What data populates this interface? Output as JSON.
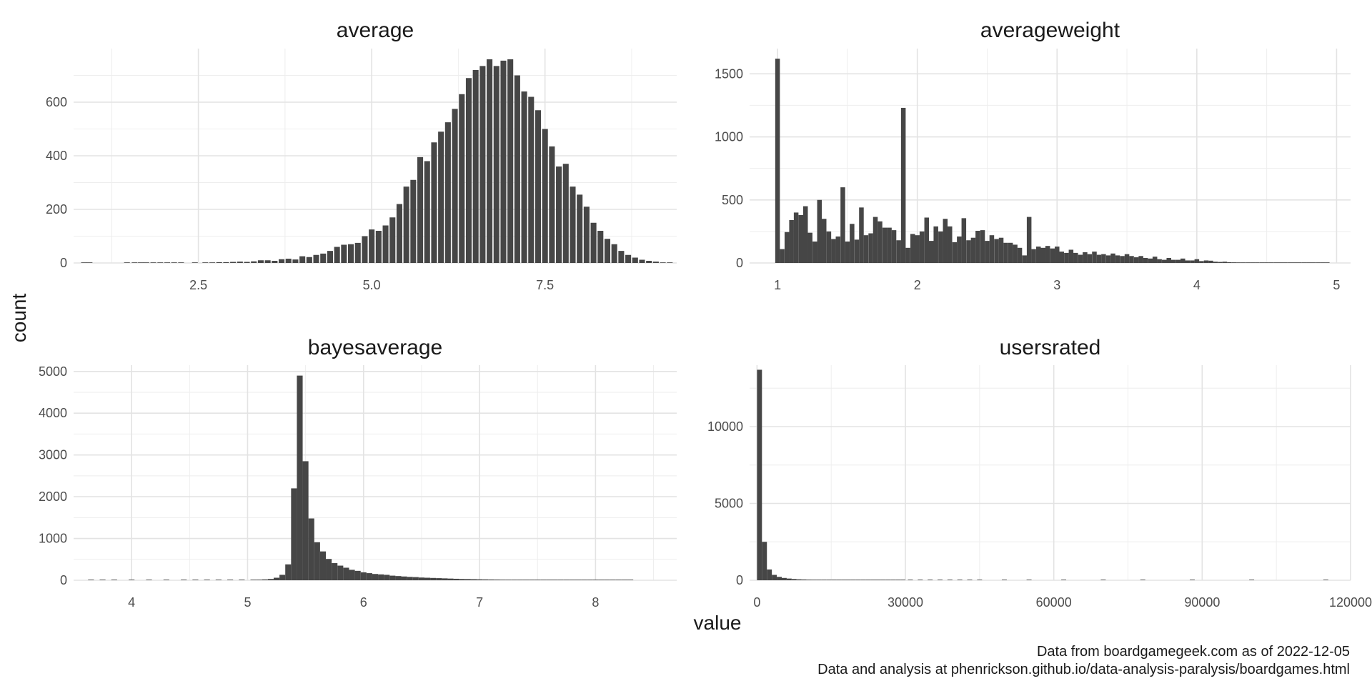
{
  "figure": {
    "y_axis_title": "count",
    "x_axis_title": "value",
    "caption_lines": [
      "Data from boardgamegeek.com as of 2022-12-05",
      "Data and analysis at phenrickson.github.io/data-analysis-paralysis/boardgames.html"
    ],
    "bar_color": "#464646"
  },
  "chart_data": [
    {
      "type": "bar",
      "title": "average",
      "xlim": [
        0.7,
        9.4
      ],
      "ylim": [
        0,
        800
      ],
      "x_ticks": [
        2.5,
        5.0,
        7.5
      ],
      "x_tick_labels": [
        "2.5",
        "5.0",
        "7.5"
      ],
      "y_ticks": [
        0,
        200,
        400,
        600
      ],
      "y_tick_labels": [
        "0",
        "200",
        "400",
        "600"
      ],
      "bin_width": 0.0833,
      "bins": [
        [
          0.85,
          1
        ],
        [
          0.93,
          1
        ],
        [
          1.47,
          1
        ],
        [
          1.58,
          1
        ],
        [
          1.67,
          1
        ],
        [
          1.75,
          1
        ],
        [
          1.85,
          1
        ],
        [
          1.95,
          2
        ],
        [
          2.05,
          2
        ],
        [
          2.15,
          2
        ],
        [
          2.25,
          1
        ],
        [
          2.45,
          1
        ],
        [
          2.6,
          2
        ],
        [
          2.7,
          2
        ],
        [
          2.8,
          3
        ],
        [
          2.9,
          3
        ],
        [
          3.0,
          4
        ],
        [
          3.1,
          5
        ],
        [
          3.2,
          4
        ],
        [
          3.3,
          6
        ],
        [
          3.4,
          10
        ],
        [
          3.5,
          10
        ],
        [
          3.6,
          8
        ],
        [
          3.7,
          14
        ],
        [
          3.8,
          16
        ],
        [
          3.9,
          13
        ],
        [
          4.0,
          25
        ],
        [
          4.1,
          22
        ],
        [
          4.2,
          30
        ],
        [
          4.3,
          35
        ],
        [
          4.4,
          45
        ],
        [
          4.5,
          60
        ],
        [
          4.6,
          68
        ],
        [
          4.7,
          70
        ],
        [
          4.8,
          75
        ],
        [
          4.9,
          100
        ],
        [
          5.0,
          125
        ],
        [
          5.1,
          120
        ],
        [
          5.2,
          140
        ],
        [
          5.3,
          170
        ],
        [
          5.4,
          220
        ],
        [
          5.5,
          285
        ],
        [
          5.6,
          310
        ],
        [
          5.7,
          395
        ],
        [
          5.8,
          380
        ],
        [
          5.9,
          450
        ],
        [
          6.0,
          490
        ],
        [
          6.1,
          525
        ],
        [
          6.2,
          575
        ],
        [
          6.3,
          630
        ],
        [
          6.4,
          690
        ],
        [
          6.5,
          720
        ],
        [
          6.6,
          735
        ],
        [
          6.7,
          760
        ],
        [
          6.8,
          735
        ],
        [
          6.9,
          755
        ],
        [
          7.0,
          760
        ],
        [
          7.1,
          700
        ],
        [
          7.2,
          640
        ],
        [
          7.3,
          620
        ],
        [
          7.4,
          570
        ],
        [
          7.5,
          500
        ],
        [
          7.6,
          435
        ],
        [
          7.7,
          360
        ],
        [
          7.8,
          370
        ],
        [
          7.9,
          285
        ],
        [
          8.0,
          255
        ],
        [
          8.1,
          210
        ],
        [
          8.2,
          150
        ],
        [
          8.3,
          120
        ],
        [
          8.4,
          90
        ],
        [
          8.5,
          70
        ],
        [
          8.6,
          45
        ],
        [
          8.7,
          30
        ],
        [
          8.8,
          20
        ],
        [
          8.9,
          12
        ],
        [
          9.0,
          8
        ],
        [
          9.1,
          5
        ],
        [
          9.2,
          2
        ],
        [
          9.3,
          1
        ]
      ]
    },
    {
      "type": "bar",
      "title": "averageweight",
      "xlim": [
        0.8,
        5.1
      ],
      "ylim": [
        0,
        1700
      ],
      "x_ticks": [
        1,
        2,
        3,
        4,
        5
      ],
      "x_tick_labels": [
        "1",
        "2",
        "3",
        "4",
        "5"
      ],
      "y_ticks": [
        0,
        500,
        1000,
        1500
      ],
      "y_tick_labels": [
        "0",
        "500",
        "1000",
        "1500"
      ],
      "bin_width": 0.0333,
      "bins": [
        [
          1.0,
          1620
        ],
        [
          1.033,
          110
        ],
        [
          1.067,
          245
        ],
        [
          1.1,
          340
        ],
        [
          1.133,
          400
        ],
        [
          1.167,
          380
        ],
        [
          1.2,
          450
        ],
        [
          1.233,
          240
        ],
        [
          1.267,
          170
        ],
        [
          1.3,
          500
        ],
        [
          1.333,
          350
        ],
        [
          1.367,
          250
        ],
        [
          1.4,
          190
        ],
        [
          1.433,
          210
        ],
        [
          1.467,
          600
        ],
        [
          1.5,
          170
        ],
        [
          1.533,
          310
        ],
        [
          1.567,
          185
        ],
        [
          1.6,
          440
        ],
        [
          1.633,
          220
        ],
        [
          1.667,
          235
        ],
        [
          1.7,
          365
        ],
        [
          1.733,
          330
        ],
        [
          1.767,
          280
        ],
        [
          1.8,
          280
        ],
        [
          1.833,
          260
        ],
        [
          1.867,
          180
        ],
        [
          1.9,
          1230
        ],
        [
          1.933,
          120
        ],
        [
          1.967,
          230
        ],
        [
          2.0,
          220
        ],
        [
          2.033,
          250
        ],
        [
          2.067,
          360
        ],
        [
          2.1,
          175
        ],
        [
          2.133,
          290
        ],
        [
          2.167,
          250
        ],
        [
          2.2,
          350
        ],
        [
          2.233,
          290
        ],
        [
          2.267,
          165
        ],
        [
          2.3,
          210
        ],
        [
          2.333,
          355
        ],
        [
          2.367,
          180
        ],
        [
          2.4,
          200
        ],
        [
          2.433,
          255
        ],
        [
          2.467,
          260
        ],
        [
          2.5,
          175
        ],
        [
          2.533,
          220
        ],
        [
          2.567,
          190
        ],
        [
          2.6,
          200
        ],
        [
          2.633,
          160
        ],
        [
          2.667,
          160
        ],
        [
          2.7,
          145
        ],
        [
          2.733,
          120
        ],
        [
          2.767,
          60
        ],
        [
          2.8,
          365
        ],
        [
          2.833,
          110
        ],
        [
          2.867,
          130
        ],
        [
          2.9,
          120
        ],
        [
          2.933,
          135
        ],
        [
          2.967,
          115
        ],
        [
          3.0,
          130
        ],
        [
          3.033,
          90
        ],
        [
          3.067,
          80
        ],
        [
          3.1,
          105
        ],
        [
          3.133,
          80
        ],
        [
          3.167,
          65
        ],
        [
          3.2,
          85
        ],
        [
          3.233,
          70
        ],
        [
          3.267,
          90
        ],
        [
          3.3,
          65
        ],
        [
          3.333,
          70
        ],
        [
          3.367,
          60
        ],
        [
          3.4,
          75
        ],
        [
          3.433,
          60
        ],
        [
          3.467,
          55
        ],
        [
          3.5,
          70
        ],
        [
          3.533,
          55
        ],
        [
          3.567,
          45
        ],
        [
          3.6,
          55
        ],
        [
          3.633,
          40
        ],
        [
          3.667,
          35
        ],
        [
          3.7,
          50
        ],
        [
          3.733,
          30
        ],
        [
          3.767,
          25
        ],
        [
          3.8,
          40
        ],
        [
          3.833,
          25
        ],
        [
          3.867,
          25
        ],
        [
          3.9,
          35
        ],
        [
          3.933,
          20
        ],
        [
          3.967,
          20
        ],
        [
          4.0,
          30
        ],
        [
          4.033,
          15
        ],
        [
          4.067,
          20
        ],
        [
          4.1,
          18
        ],
        [
          4.133,
          10
        ],
        [
          4.167,
          8
        ],
        [
          4.2,
          10
        ],
        [
          4.233,
          6
        ],
        [
          4.267,
          5
        ],
        [
          4.3,
          4
        ],
        [
          4.333,
          3
        ],
        [
          4.367,
          2
        ],
        [
          4.4,
          2
        ],
        [
          4.433,
          1
        ],
        [
          4.467,
          1
        ],
        [
          4.5,
          1
        ],
        [
          4.533,
          1
        ],
        [
          4.567,
          1
        ],
        [
          4.6,
          1
        ],
        [
          4.633,
          1
        ],
        [
          4.667,
          1
        ],
        [
          4.7,
          1
        ],
        [
          4.733,
          1
        ],
        [
          4.767,
          1
        ],
        [
          4.8,
          1
        ],
        [
          4.833,
          1
        ],
        [
          4.867,
          1
        ],
        [
          4.9,
          1
        ],
        [
          4.933,
          1
        ]
      ]
    },
    {
      "type": "bar",
      "title": "bayesaverage",
      "xlim": [
        3.5,
        8.7
      ],
      "ylim": [
        0,
        5150
      ],
      "x_ticks": [
        4,
        5,
        6,
        7,
        8
      ],
      "x_tick_labels": [
        "4",
        "5",
        "6",
        "7",
        "8"
      ],
      "y_ticks": [
        0,
        1000,
        2000,
        3000,
        4000,
        5000
      ],
      "y_tick_labels": [
        "0",
        "1000",
        "2000",
        "3000",
        "4000",
        "5000"
      ],
      "bin_width": 0.05,
      "bins": [
        [
          3.65,
          2
        ],
        [
          3.75,
          2
        ],
        [
          3.85,
          2
        ],
        [
          4.0,
          2
        ],
        [
          4.15,
          2
        ],
        [
          4.3,
          2
        ],
        [
          4.45,
          3
        ],
        [
          4.55,
          3
        ],
        [
          4.65,
          4
        ],
        [
          4.75,
          4
        ],
        [
          4.85,
          6
        ],
        [
          4.95,
          8
        ],
        [
          5.05,
          12
        ],
        [
          5.1,
          14
        ],
        [
          5.15,
          20
        ],
        [
          5.2,
          30
        ],
        [
          5.25,
          60
        ],
        [
          5.3,
          130
        ],
        [
          5.35,
          380
        ],
        [
          5.4,
          2200
        ],
        [
          5.45,
          4900
        ],
        [
          5.5,
          2850
        ],
        [
          5.55,
          1480
        ],
        [
          5.6,
          910
        ],
        [
          5.65,
          690
        ],
        [
          5.7,
          510
        ],
        [
          5.75,
          410
        ],
        [
          5.8,
          350
        ],
        [
          5.85,
          300
        ],
        [
          5.9,
          250
        ],
        [
          5.95,
          225
        ],
        [
          6.0,
          190
        ],
        [
          6.05,
          170
        ],
        [
          6.1,
          150
        ],
        [
          6.15,
          140
        ],
        [
          6.2,
          130
        ],
        [
          6.25,
          110
        ],
        [
          6.3,
          100
        ],
        [
          6.35,
          90
        ],
        [
          6.4,
          80
        ],
        [
          6.45,
          75
        ],
        [
          6.5,
          65
        ],
        [
          6.55,
          60
        ],
        [
          6.6,
          55
        ],
        [
          6.65,
          50
        ],
        [
          6.7,
          45
        ],
        [
          6.75,
          40
        ],
        [
          6.8,
          35
        ],
        [
          6.85,
          30
        ],
        [
          6.9,
          28
        ],
        [
          6.95,
          25
        ],
        [
          7.0,
          22
        ],
        [
          7.05,
          20
        ],
        [
          7.1,
          18
        ],
        [
          7.15,
          16
        ],
        [
          7.2,
          14
        ],
        [
          7.25,
          12
        ],
        [
          7.3,
          10
        ],
        [
          7.35,
          9
        ],
        [
          7.4,
          8
        ],
        [
          7.45,
          7
        ],
        [
          7.5,
          6
        ],
        [
          7.55,
          5
        ],
        [
          7.6,
          5
        ],
        [
          7.65,
          4
        ],
        [
          7.7,
          4
        ],
        [
          7.75,
          3
        ],
        [
          7.8,
          3
        ],
        [
          7.85,
          2
        ],
        [
          7.9,
          2
        ],
        [
          7.95,
          2
        ],
        [
          8.0,
          2
        ],
        [
          8.05,
          1
        ],
        [
          8.1,
          1
        ],
        [
          8.15,
          1
        ],
        [
          8.2,
          1
        ],
        [
          8.25,
          1
        ],
        [
          8.3,
          1
        ]
      ]
    },
    {
      "type": "bar",
      "title": "usersrated",
      "xlim": [
        -1500,
        120000
      ],
      "ylim": [
        0,
        14000
      ],
      "x_ticks": [
        0,
        30000,
        60000,
        90000,
        120000
      ],
      "x_tick_labels": [
        "0",
        "30000",
        "60000",
        "90000",
        "120000"
      ],
      "y_ticks": [
        0,
        5000,
        10000
      ],
      "y_tick_labels": [
        "0",
        "5000",
        "10000"
      ],
      "bin_width": 1000,
      "bins": [
        [
          500,
          13700
        ],
        [
          1500,
          2500
        ],
        [
          2500,
          700
        ],
        [
          3500,
          350
        ],
        [
          4500,
          220
        ],
        [
          5500,
          150
        ],
        [
          6500,
          110
        ],
        [
          7500,
          80
        ],
        [
          8500,
          60
        ],
        [
          9500,
          50
        ],
        [
          10500,
          40
        ],
        [
          11500,
          35
        ],
        [
          12500,
          30
        ],
        [
          13500,
          25
        ],
        [
          14500,
          20
        ],
        [
          15500,
          18
        ],
        [
          16500,
          15
        ],
        [
          17500,
          12
        ],
        [
          18500,
          10
        ],
        [
          19500,
          9
        ],
        [
          20500,
          8
        ],
        [
          21500,
          7
        ],
        [
          22500,
          6
        ],
        [
          23500,
          5
        ],
        [
          24500,
          5
        ],
        [
          25500,
          4
        ],
        [
          26500,
          4
        ],
        [
          27500,
          3
        ],
        [
          28500,
          3
        ],
        [
          29500,
          3
        ],
        [
          31000,
          2
        ],
        [
          33000,
          2
        ],
        [
          35000,
          2
        ],
        [
          37000,
          2
        ],
        [
          39000,
          2
        ],
        [
          41000,
          1
        ],
        [
          43000,
          1
        ],
        [
          45000,
          1
        ],
        [
          50000,
          1
        ],
        [
          55000,
          1
        ],
        [
          62000,
          1
        ],
        [
          70000,
          1
        ],
        [
          78000,
          1
        ],
        [
          88000,
          1
        ],
        [
          100000,
          1
        ],
        [
          115000,
          1
        ]
      ]
    }
  ]
}
